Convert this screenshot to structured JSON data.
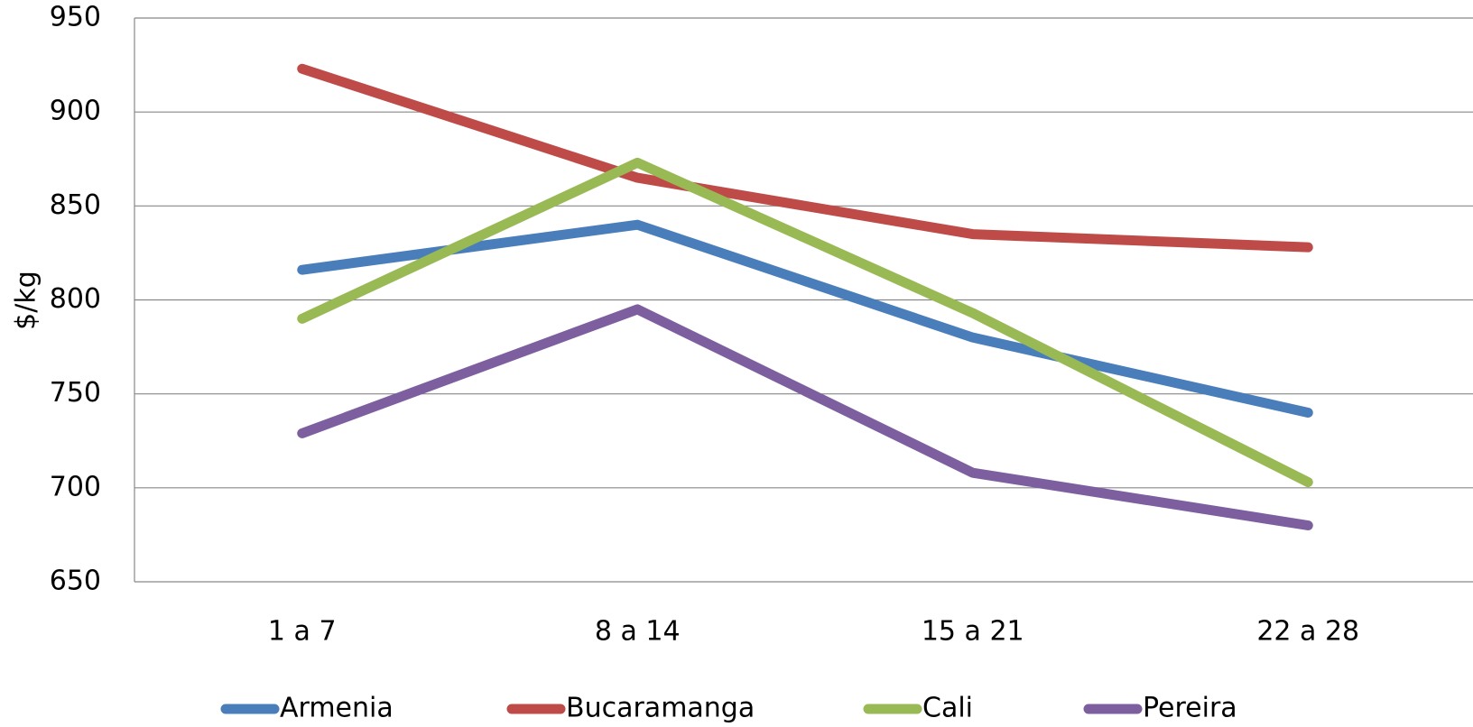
{
  "chart_data": {
    "type": "line",
    "y_label": "$/kg",
    "categories": [
      "1 a 7",
      "8 a 14",
      "15 a 21",
      "22 a 28"
    ],
    "series": [
      {
        "name": "Armenia",
        "color": "#4a7ebb",
        "values": [
          816,
          840,
          780,
          740
        ]
      },
      {
        "name": "Bucaramanga",
        "color": "#be4b48",
        "values": [
          923,
          865,
          835,
          828
        ]
      },
      {
        "name": "Cali",
        "color": "#98b954",
        "values": [
          790,
          873,
          793,
          703
        ]
      },
      {
        "name": "Pereira",
        "color": "#7d5fa0",
        "values": [
          729,
          795,
          708,
          680
        ]
      }
    ],
    "ylim": [
      650,
      950
    ],
    "yticks": [
      650,
      700,
      750,
      800,
      850,
      900,
      950
    ],
    "grid": true,
    "legend": "bottom"
  }
}
